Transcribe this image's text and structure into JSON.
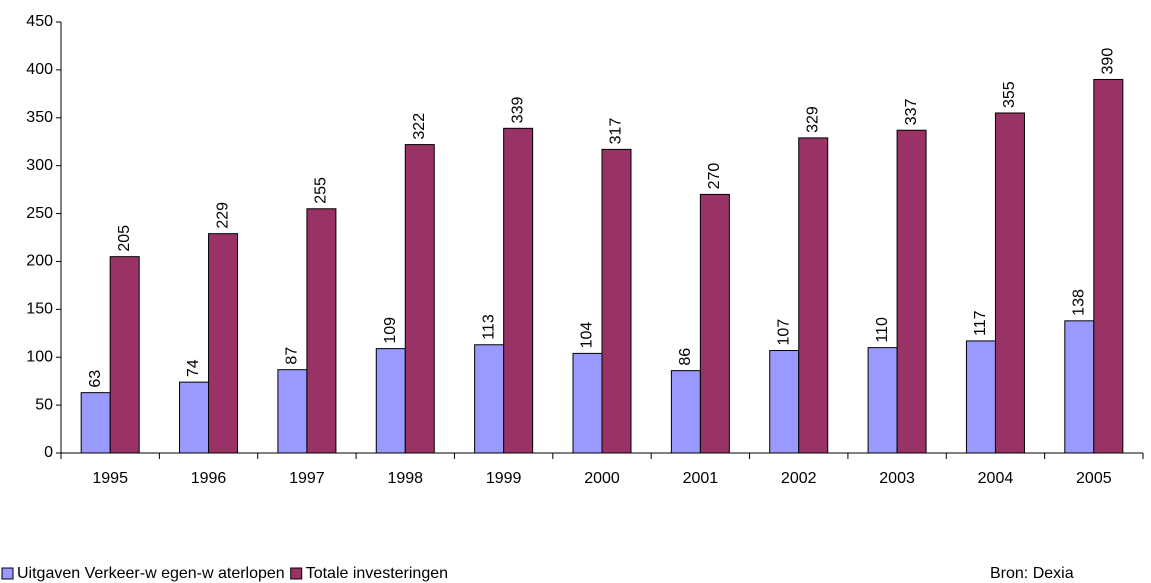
{
  "chart_data": {
    "type": "bar",
    "categories": [
      "1995",
      "1996",
      "1997",
      "1998",
      "1999",
      "2000",
      "2001",
      "2002",
      "2003",
      "2004",
      "2005"
    ],
    "series": [
      {
        "name": "Uitgaven Verkeer-w egen-w aterlopen",
        "color": "#9999ff",
        "values": [
          63,
          74,
          87,
          109,
          113,
          104,
          86,
          107,
          110,
          117,
          138
        ]
      },
      {
        "name": "Totale investeringen",
        "color": "#993366",
        "values": [
          205,
          229,
          255,
          322,
          339,
          317,
          270,
          329,
          337,
          355,
          390
        ]
      }
    ],
    "ylim": [
      0,
      450
    ],
    "yticks": [
      0,
      50,
      100,
      150,
      200,
      250,
      300,
      350,
      400,
      450
    ],
    "grid": false,
    "legend": "bottom-left",
    "source": "Bron: Dexia"
  }
}
